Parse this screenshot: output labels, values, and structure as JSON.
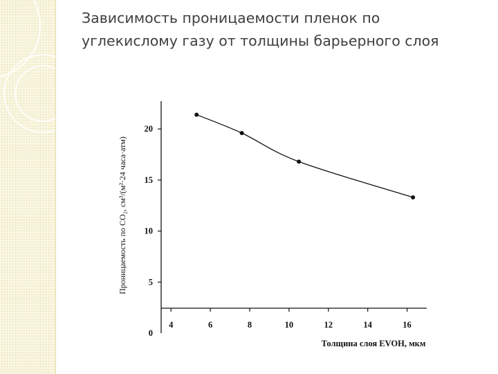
{
  "slide": {
    "title": "Зависимость проницаемости пленок по\nуглекислому газу от толщины барьерного слоя"
  },
  "theme": {
    "accent": "#f4efcf",
    "ink": "#111111",
    "title_color": "#3f3f3f"
  },
  "chart_data": {
    "type": "line",
    "title": "",
    "xlabel": "Толщина слоя EVOH, мкм",
    "ylabel": "Проницаемость по CO₂, см³/(м²·24 часа·атм)",
    "x_ticks": [
      4,
      6,
      8,
      10,
      12,
      14,
      16
    ],
    "y_ticks": [
      0,
      5,
      10,
      15,
      20
    ],
    "xlim": [
      3.5,
      17
    ],
    "ylim": [
      0,
      23
    ],
    "grid": false,
    "legend": "none",
    "series": [
      {
        "x": [
          5.3,
          7.6,
          10.5,
          16.3
        ],
        "y": [
          21.4,
          19.6,
          16.8,
          13.3
        ]
      }
    ]
  }
}
